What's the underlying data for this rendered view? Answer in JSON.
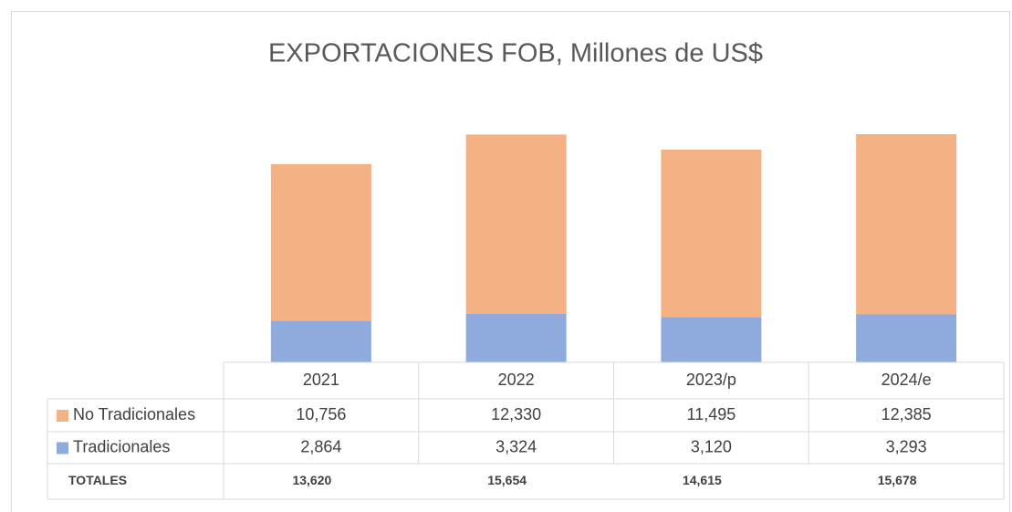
{
  "chart_data": {
    "type": "stacked-bar",
    "title": "EXPORTACIONES FOB, Millones de US$",
    "categories": [
      "2021",
      "2022",
      "2023/p",
      "2024/e"
    ],
    "series": [
      {
        "name": "No Tradicionales",
        "color": "#f4b183",
        "values": [
          10756,
          12330,
          11495,
          12385
        ],
        "value_labels": [
          "10,756",
          "12,330",
          "11,495",
          "12,385"
        ]
      },
      {
        "name": "Tradicionales",
        "color": "#8faadc",
        "values": [
          2864,
          3324,
          3120,
          3293
        ],
        "value_labels": [
          "2,864",
          "3,324",
          "3,120",
          "3,293"
        ]
      }
    ],
    "totals": {
      "label": "TOTALES",
      "values": [
        13620,
        15654,
        14615,
        15678
      ],
      "value_labels": [
        "13,620",
        "15,654",
        "14,615",
        "15,678"
      ]
    }
  }
}
